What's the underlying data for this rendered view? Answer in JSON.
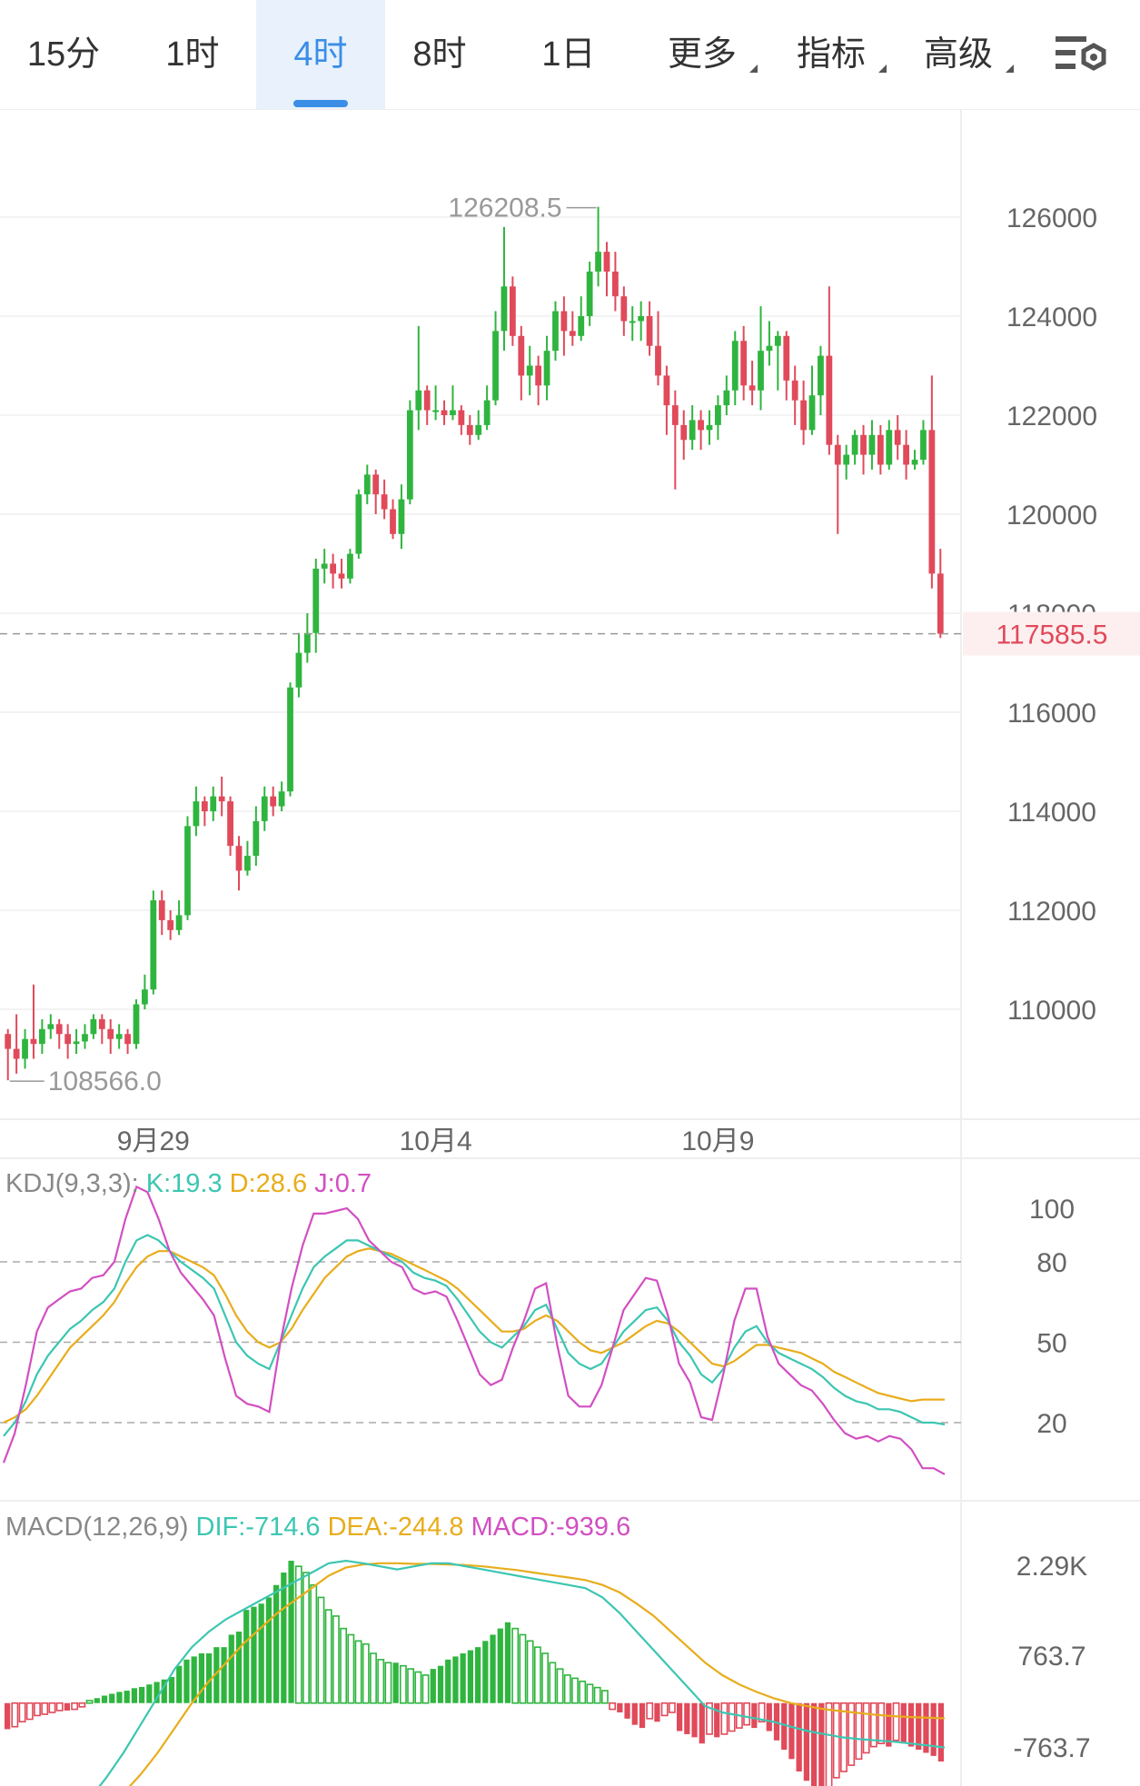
{
  "tabs": [
    {
      "label": "15分",
      "active": false,
      "dropdown": false
    },
    {
      "label": "1时",
      "active": false,
      "dropdown": false
    },
    {
      "label": "4时",
      "active": true,
      "dropdown": false
    },
    {
      "label": "8时",
      "active": false,
      "dropdown": false
    },
    {
      "label": "1日",
      "active": false,
      "dropdown": false
    },
    {
      "label": "更多",
      "active": false,
      "dropdown": true
    },
    {
      "label": "指标",
      "active": false,
      "dropdown": true
    },
    {
      "label": "高级",
      "active": false,
      "dropdown": true
    }
  ],
  "settings_icon": "chart-settings-icon",
  "colors": {
    "up": "#2fb53f",
    "down": "#e04a5a",
    "dif": "#3cc6b2",
    "dea": "#e8ad1c",
    "j": "#d24fc2",
    "accent": "#3a8ee6",
    "current": "#e04a5a"
  },
  "main": {
    "y_ticks": [
      126000,
      124000,
      122000,
      120000,
      118000,
      116000,
      114000,
      112000,
      110000
    ],
    "y_tick_labels": [
      "126000",
      "124000",
      "122000",
      "120000",
      "118000",
      "116000",
      "114000",
      "112000",
      "110000"
    ],
    "high_label": "126208.5",
    "low_label": "108566.0",
    "current_price": "117585.5",
    "x_labels": [
      "9月29",
      "10月4",
      "10月9"
    ]
  },
  "kdj": {
    "title": "KDJ(9,3,3):",
    "k_text": "K:19.3",
    "d_text": "D:28.6",
    "j_text": "J:0.7",
    "y_ticks": [
      "100",
      "80",
      "50",
      "20"
    ]
  },
  "macd": {
    "title": "MACD(12,26,9)",
    "dif_text": "DIF:-714.6",
    "dea_text": "DEA:-244.8",
    "macd_text": "MACD:-939.6",
    "y_ticks": [
      "2.29K",
      "763.7",
      "-763.7"
    ]
  },
  "chart_data": {
    "type": "candlestick",
    "symbol_interval": "4时",
    "candles": [
      [
        109500,
        109200,
        109600,
        108566
      ],
      [
        109200,
        109000,
        109900,
        108700
      ],
      [
        109000,
        109400,
        109600,
        108800
      ],
      [
        109400,
        109300,
        110500,
        109000
      ],
      [
        109300,
        109600,
        109800,
        109100
      ],
      [
        109600,
        109700,
        109900,
        109400
      ],
      [
        109700,
        109500,
        109800,
        109200
      ],
      [
        109500,
        109300,
        109700,
        109000
      ],
      [
        109300,
        109350,
        109600,
        109100
      ],
      [
        109350,
        109500,
        109700,
        109200
      ],
      [
        109500,
        109800,
        109900,
        109400
      ],
      [
        109800,
        109600,
        109900,
        109300
      ],
      [
        109600,
        109400,
        109800,
        109100
      ],
      [
        109400,
        109500,
        109700,
        109200
      ],
      [
        109500,
        109300,
        109600,
        109100
      ],
      [
        109300,
        110100,
        110200,
        109200
      ],
      [
        110100,
        110400,
        110700,
        110000
      ],
      [
        110400,
        112200,
        112400,
        110300
      ],
      [
        112200,
        111800,
        112400,
        111500
      ],
      [
        111800,
        111600,
        112000,
        111400
      ],
      [
        111600,
        111900,
        112200,
        111500
      ],
      [
        111900,
        113700,
        113900,
        111800
      ],
      [
        113700,
        114200,
        114500,
        113500
      ],
      [
        114200,
        114000,
        114300,
        113700
      ],
      [
        114000,
        114300,
        114500,
        113800
      ],
      [
        114300,
        114200,
        114700,
        113900
      ],
      [
        114200,
        113300,
        114300,
        113100
      ],
      [
        113300,
        112800,
        113500,
        112400
      ],
      [
        112800,
        113100,
        113400,
        112700
      ],
      [
        113100,
        113800,
        114100,
        112900
      ],
      [
        113800,
        114300,
        114500,
        113600
      ],
      [
        114300,
        114100,
        114500,
        113900
      ],
      [
        114100,
        114400,
        114600,
        114000
      ],
      [
        114400,
        116500,
        116600,
        114300
      ],
      [
        116500,
        117200,
        117600,
        116300
      ],
      [
        117200,
        117600,
        118000,
        117000
      ],
      [
        117600,
        118900,
        119100,
        117200
      ],
      [
        118900,
        119000,
        119300,
        118600
      ],
      [
        119000,
        118800,
        119200,
        118500
      ],
      [
        118800,
        118700,
        119100,
        118500
      ],
      [
        118700,
        119200,
        119300,
        118600
      ],
      [
        119200,
        120400,
        120500,
        119100
      ],
      [
        120400,
        120800,
        121000,
        120200
      ],
      [
        120800,
        120400,
        120900,
        120000
      ],
      [
        120400,
        120100,
        120700,
        119900
      ],
      [
        120100,
        119600,
        120300,
        119500
      ],
      [
        119600,
        120300,
        120600,
        119300
      ],
      [
        120300,
        122100,
        122300,
        120200
      ],
      [
        122100,
        122500,
        123800,
        121700
      ],
      [
        122500,
        122100,
        122600,
        121800
      ],
      [
        122100,
        122100,
        122600,
        121900
      ],
      [
        122100,
        122000,
        122300,
        121800
      ],
      [
        122000,
        122100,
        122600,
        121900
      ],
      [
        122100,
        121800,
        122200,
        121600
      ],
      [
        121800,
        121600,
        122000,
        121400
      ],
      [
        121600,
        121800,
        122100,
        121500
      ],
      [
        121800,
        122300,
        122600,
        121700
      ],
      [
        122300,
        123700,
        124100,
        122200
      ],
      [
        123700,
        124600,
        125800,
        123300
      ],
      [
        124600,
        123600,
        124800,
        123400
      ],
      [
        123600,
        122800,
        123800,
        122300
      ],
      [
        122800,
        123000,
        123400,
        122400
      ],
      [
        123000,
        122600,
        123200,
        122200
      ],
      [
        122600,
        123300,
        123600,
        122300
      ],
      [
        123300,
        124100,
        124300,
        123100
      ],
      [
        124100,
        123700,
        124400,
        123200
      ],
      [
        123700,
        123600,
        124100,
        123400
      ],
      [
        123600,
        124000,
        124400,
        123500
      ],
      [
        124000,
        124900,
        125100,
        123800
      ],
      [
        124900,
        125300,
        126208.5,
        124600
      ],
      [
        125300,
        124900,
        125500,
        124400
      ],
      [
        124900,
        124400,
        125300,
        124100
      ],
      [
        124400,
        123900,
        124600,
        123600
      ],
      [
        123900,
        123900,
        124200,
        123500
      ],
      [
        123900,
        124000,
        124300,
        123500
      ],
      [
        124000,
        123400,
        124300,
        123200
      ],
      [
        123400,
        122800,
        124100,
        122600
      ],
      [
        122800,
        122200,
        123000,
        121600
      ],
      [
        122200,
        121800,
        122500,
        120500
      ],
      [
        121800,
        121500,
        122100,
        121100
      ],
      [
        121500,
        121900,
        122200,
        121300
      ],
      [
        121900,
        121700,
        122100,
        121300
      ],
      [
        121700,
        121800,
        122100,
        121400
      ],
      [
        121800,
        122200,
        122400,
        121500
      ],
      [
        122200,
        122500,
        122800,
        122000
      ],
      [
        122500,
        123500,
        123700,
        122200
      ],
      [
        123500,
        122600,
        123800,
        122300
      ],
      [
        122600,
        122500,
        123100,
        122200
      ],
      [
        122500,
        123300,
        124200,
        122100
      ],
      [
        123300,
        123400,
        123900,
        123000
      ],
      [
        123400,
        123600,
        123700,
        122500
      ],
      [
        123600,
        122700,
        123700,
        122300
      ],
      [
        122700,
        122300,
        123000,
        121800
      ],
      [
        122300,
        121700,
        122700,
        121400
      ],
      [
        121700,
        122400,
        123000,
        121600
      ],
      [
        122400,
        123200,
        123400,
        122000
      ],
      [
        123200,
        121400,
        124600,
        121200
      ],
      [
        121400,
        121000,
        121600,
        119600
      ],
      [
        121000,
        121200,
        121400,
        120700
      ],
      [
        121200,
        121600,
        121700,
        121000
      ],
      [
        121600,
        121200,
        121800,
        120800
      ],
      [
        121200,
        121600,
        121900,
        120900
      ],
      [
        121600,
        121000,
        121800,
        120800
      ],
      [
        121000,
        121700,
        121900,
        120900
      ],
      [
        121700,
        121400,
        122000,
        121100
      ],
      [
        121400,
        121000,
        121700,
        120700
      ],
      [
        121000,
        121100,
        121300,
        120900
      ],
      [
        121100,
        121700,
        121900,
        121000
      ],
      [
        121700,
        118800,
        122800,
        118500
      ],
      [
        118800,
        117585.5,
        119300,
        117500
      ]
    ],
    "candle_fields": [
      "open",
      "close",
      "high",
      "low"
    ],
    "x_label_positions": {
      "9月29": 17,
      "10月4": 50,
      "10月9": 83
    },
    "y_range": [
      108000,
      128000
    ],
    "grid": true,
    "kdj": {
      "K": [
        15,
        20,
        28,
        38,
        45,
        50,
        55,
        58,
        62,
        65,
        70,
        80,
        88,
        90,
        88,
        84,
        80,
        77,
        74,
        70,
        60,
        50,
        45,
        42,
        40,
        50,
        60,
        70,
        78,
        82,
        85,
        88,
        88,
        86,
        84,
        82,
        80,
        76,
        74,
        73,
        71,
        66,
        60,
        54,
        50,
        48,
        52,
        56,
        62,
        64,
        55,
        46,
        42,
        40,
        42,
        48,
        54,
        58,
        62,
        63,
        58,
        50,
        45,
        38,
        35,
        40,
        48,
        54,
        56,
        50,
        46,
        44,
        42,
        40,
        37,
        33,
        30,
        28,
        27,
        25,
        25,
        24,
        22,
        20,
        20,
        19.3
      ],
      "D": [
        20,
        22,
        25,
        30,
        36,
        42,
        48,
        52,
        56,
        60,
        65,
        72,
        78,
        82,
        84,
        84,
        82,
        80,
        78,
        75,
        68,
        60,
        54,
        50,
        48,
        50,
        55,
        62,
        68,
        74,
        78,
        82,
        84,
        85,
        84,
        83,
        81,
        79,
        77,
        75,
        73,
        70,
        66,
        62,
        58,
        54,
        54,
        55,
        58,
        60,
        58,
        54,
        50,
        47,
        46,
        48,
        50,
        53,
        56,
        58,
        57,
        54,
        50,
        46,
        42,
        41,
        43,
        46,
        49,
        49,
        48,
        47,
        46,
        44,
        42,
        39,
        37,
        35,
        33,
        31,
        30,
        29,
        28,
        28.6,
        28.6,
        28.6
      ],
      "J": [
        5,
        16,
        34,
        54,
        63,
        66,
        69,
        70,
        74,
        75,
        80,
        96,
        108,
        106,
        96,
        84,
        76,
        71,
        66,
        60,
        44,
        30,
        27,
        26,
        24,
        50,
        70,
        86,
        98,
        98,
        99,
        100,
        96,
        88,
        84,
        80,
        78,
        70,
        68,
        69,
        67,
        58,
        48,
        38,
        34,
        36,
        48,
        58,
        70,
        72,
        49,
        30,
        26,
        26,
        34,
        48,
        62,
        68,
        74,
        73,
        60,
        42,
        35,
        22,
        21,
        38,
        58,
        70,
        70,
        52,
        42,
        38,
        34,
        32,
        27,
        21,
        16,
        14,
        15,
        13,
        15,
        14,
        10,
        3,
        3,
        0.7
      ]
    },
    "macd": {
      "DIF": [
        -2290,
        -2250,
        -2150,
        -2000,
        -1800,
        -1550,
        -1200,
        -800,
        -350,
        100,
        550,
        900,
        1150,
        1350,
        1500,
        1650,
        1800,
        1950,
        2100,
        2250,
        2290,
        2250,
        2200,
        2150,
        2200,
        2250,
        2250,
        2200,
        2150,
        2100,
        2050,
        2000,
        1950,
        1900,
        1850,
        1700,
        1450,
        1150,
        850,
        550,
        250,
        -50,
        -150,
        -200,
        -250,
        -300,
        -380,
        -450,
        -500,
        -550,
        -580,
        -600,
        -620,
        -650,
        -680,
        -714.6
      ],
      "DEA": [
        -2290,
        -2270,
        -2230,
        -2150,
        -2050,
        -1900,
        -1700,
        -1450,
        -1150,
        -800,
        -400,
        0,
        350,
        650,
        950,
        1200,
        1450,
        1650,
        1850,
        2050,
        2180,
        2230,
        2250,
        2250,
        2240,
        2240,
        2230,
        2220,
        2200,
        2170,
        2140,
        2100,
        2060,
        2020,
        1980,
        1900,
        1780,
        1600,
        1400,
        1150,
        900,
        650,
        450,
        300,
        180,
        80,
        0,
        -50,
        -100,
        -130,
        -160,
        -190,
        -210,
        -225,
        -235,
        -244.8
      ],
      "hist": [
        -420,
        -380,
        -300,
        -260,
        -200,
        -180,
        -150,
        -120,
        -120,
        -100,
        -60,
        40,
        80,
        120,
        150,
        180,
        200,
        240,
        260,
        300,
        340,
        380,
        420,
        600,
        700,
        750,
        800,
        800,
        900,
        900,
        1100,
        1150,
        1500,
        1550,
        1600,
        1700,
        1900,
        2100,
        2290,
        2200,
        2100,
        1900,
        1700,
        1500,
        1400,
        1200,
        1100,
        1000,
        950,
        800,
        700,
        650,
        650,
        600,
        550,
        500,
        450,
        550,
        600,
        700,
        750,
        800,
        850,
        900,
        1000,
        1100,
        1200,
        1300,
        1200,
        1100,
        1000,
        900,
        800,
        650,
        550,
        450,
        400,
        350,
        300,
        250,
        200,
        -100,
        -150,
        -250,
        -350,
        -400,
        -250,
        -300,
        -200,
        -150,
        -450,
        -500,
        -550,
        -650,
        -500,
        -550,
        -500,
        -450,
        -400,
        -350,
        -400,
        -300,
        -450,
        -600,
        -750,
        -900,
        -1100,
        -1250,
        -1350,
        -1450,
        -1350,
        -1200,
        -1100,
        -1000,
        -900,
        -800,
        -700,
        -650,
        -700,
        -600,
        -650,
        -700,
        -750,
        -800,
        -850,
        -939.6
      ],
      "y_range": [
        -1100,
        2700
      ]
    }
  }
}
